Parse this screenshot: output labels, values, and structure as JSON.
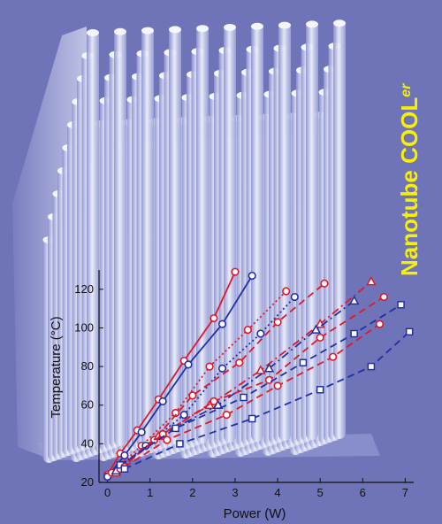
{
  "brand": {
    "text_main": "Nanotube COOL",
    "text_sub": "er",
    "color": "#f7f000"
  },
  "colors": {
    "background": "#6f73b8",
    "pillars": "#d8def4",
    "red": "#e0182a",
    "blue": "#2230a8"
  },
  "chart_data": {
    "type": "line",
    "title": "",
    "xlabel": "Power (W)",
    "ylabel": "Temperature (°C)",
    "xlim": [
      -0.2,
      7.2
    ],
    "ylim": [
      20,
      130
    ],
    "xticks": [
      0,
      1,
      2,
      3,
      4,
      5,
      6,
      7
    ],
    "yticks": [
      20,
      40,
      60,
      80,
      100,
      120
    ],
    "grid": false,
    "legend": "none",
    "series": [
      {
        "color": "#e0182a",
        "style": "solid",
        "marker": "circle",
        "x": [
          0.0,
          0.3,
          0.7,
          1.2,
          1.8,
          2.5,
          3.0
        ],
        "y": [
          24,
          35,
          47,
          63,
          83,
          105,
          129
        ]
      },
      {
        "color": "#2230a8",
        "style": "solid",
        "marker": "circle",
        "x": [
          0.0,
          0.4,
          0.8,
          1.3,
          1.9,
          2.7,
          3.4
        ],
        "y": [
          23,
          34,
          46,
          62,
          81,
          102,
          127
        ]
      },
      {
        "color": "#e0182a",
        "style": "dotted",
        "marker": "circle",
        "x": [
          0.0,
          0.8,
          1.6,
          2.4,
          3.3,
          4.2
        ],
        "y": [
          23,
          39,
          56,
          80,
          99,
          119
        ]
      },
      {
        "color": "#2230a8",
        "style": "dotted",
        "marker": "circle",
        "x": [
          0.0,
          0.9,
          1.8,
          2.7,
          3.6,
          4.4
        ],
        "y": [
          23,
          39,
          55,
          79,
          97,
          116
        ]
      },
      {
        "color": "#e0182a",
        "style": "dashed",
        "marker": "circle",
        "x": [
          0.1,
          1.1,
          2.0,
          3.1,
          4.0,
          5.1
        ],
        "y": [
          25,
          42,
          65,
          82,
          103,
          123
        ]
      },
      {
        "color": "#e0182a",
        "style": "dashdot",
        "marker": "triangle",
        "x": [
          0.2,
          1.2,
          2.4,
          3.6,
          5.0,
          6.2
        ],
        "y": [
          25,
          44,
          60,
          78,
          102,
          124
        ]
      },
      {
        "color": "#2230a8",
        "style": "dashdot",
        "marker": "triangle",
        "x": [
          0.2,
          1.3,
          2.6,
          3.8,
          4.9,
          5.8
        ],
        "y": [
          26,
          45,
          60,
          79,
          99,
          114
        ]
      },
      {
        "color": "#e0182a",
        "style": "dashed",
        "marker": "circle",
        "x": [
          0.3,
          1.3,
          2.5,
          3.8,
          5.0,
          6.5
        ],
        "y": [
          27,
          45,
          62,
          73,
          95,
          116
        ]
      },
      {
        "color": "#2230a8",
        "style": "dashed",
        "marker": "square",
        "x": [
          0.3,
          1.6,
          3.2,
          4.6,
          5.8,
          6.9
        ],
        "y": [
          29,
          48,
          64,
          82,
          97,
          112
        ]
      },
      {
        "color": "#e0182a",
        "style": "dashed",
        "marker": "circle",
        "x": [
          0.4,
          1.4,
          2.8,
          4.0,
          5.3,
          6.4
        ],
        "y": [
          28,
          42,
          55,
          70,
          85,
          102
        ]
      },
      {
        "color": "#2230a8",
        "style": "dashed",
        "marker": "square",
        "x": [
          0.4,
          1.7,
          3.4,
          5.0,
          6.2,
          7.1
        ],
        "y": [
          27,
          40,
          53,
          68,
          80,
          98
        ]
      }
    ]
  }
}
